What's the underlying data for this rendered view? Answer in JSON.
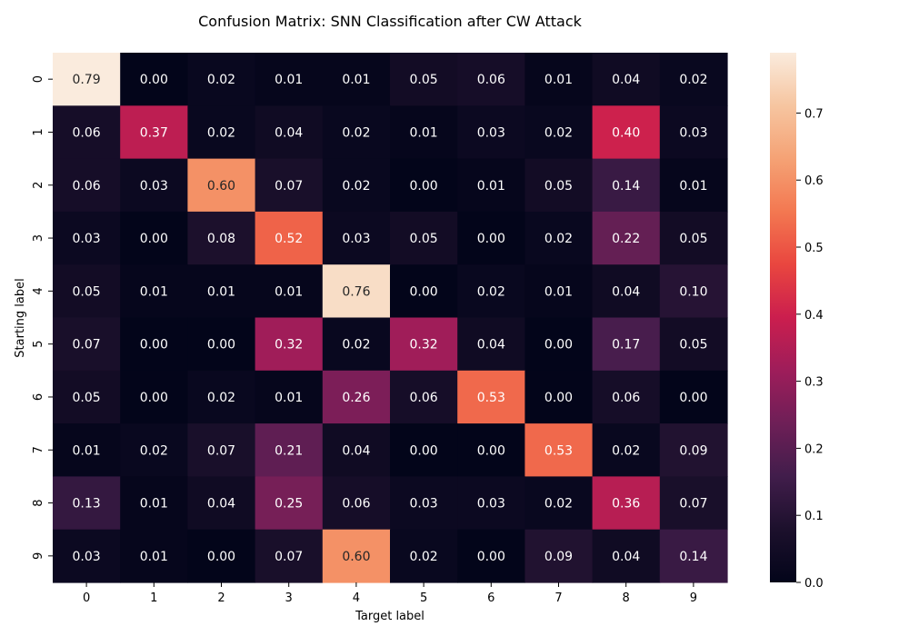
{
  "chart_data": {
    "type": "heatmap",
    "title": "Confusion Matrix: SNN Classification after CW Attack",
    "xlabel": "Target label",
    "ylabel": "Starting label",
    "x_categories": [
      "0",
      "1",
      "2",
      "3",
      "4",
      "5",
      "6",
      "7",
      "8",
      "9"
    ],
    "y_categories": [
      "0",
      "1",
      "2",
      "3",
      "4",
      "5",
      "6",
      "7",
      "8",
      "9"
    ],
    "values": [
      [
        0.79,
        0.0,
        0.02,
        0.01,
        0.01,
        0.05,
        0.06,
        0.01,
        0.04,
        0.02
      ],
      [
        0.06,
        0.37,
        0.02,
        0.04,
        0.02,
        0.01,
        0.03,
        0.02,
        0.4,
        0.03
      ],
      [
        0.06,
        0.03,
        0.6,
        0.07,
        0.02,
        0.0,
        0.01,
        0.05,
        0.14,
        0.01
      ],
      [
        0.03,
        0.0,
        0.08,
        0.52,
        0.03,
        0.05,
        0.0,
        0.02,
        0.22,
        0.05
      ],
      [
        0.05,
        0.01,
        0.01,
        0.01,
        0.76,
        0.0,
        0.02,
        0.01,
        0.04,
        0.1
      ],
      [
        0.07,
        0.0,
        0.0,
        0.32,
        0.02,
        0.32,
        0.04,
        0.0,
        0.17,
        0.05
      ],
      [
        0.05,
        0.0,
        0.02,
        0.01,
        0.26,
        0.06,
        0.53,
        0.0,
        0.06,
        0.0
      ],
      [
        0.01,
        0.02,
        0.07,
        0.21,
        0.04,
        0.0,
        0.0,
        0.53,
        0.02,
        0.09
      ],
      [
        0.13,
        0.01,
        0.04,
        0.25,
        0.06,
        0.03,
        0.03,
        0.02,
        0.36,
        0.07
      ],
      [
        0.03,
        0.01,
        0.0,
        0.07,
        0.6,
        0.02,
        0.0,
        0.09,
        0.04,
        0.14
      ]
    ],
    "colormap": "rocket",
    "colorbar": {
      "vmin": 0.0,
      "vmax": 0.79,
      "ticks": [
        0.0,
        0.1,
        0.2,
        0.3,
        0.4,
        0.5,
        0.6,
        0.7
      ],
      "tick_labels": [
        "0.0",
        "0.1",
        "0.2",
        "0.3",
        "0.4",
        "0.5",
        "0.6",
        "0.7"
      ]
    },
    "annotations": true,
    "annotation_format": "0.00",
    "grid": false,
    "legend": "colorbar-right"
  }
}
